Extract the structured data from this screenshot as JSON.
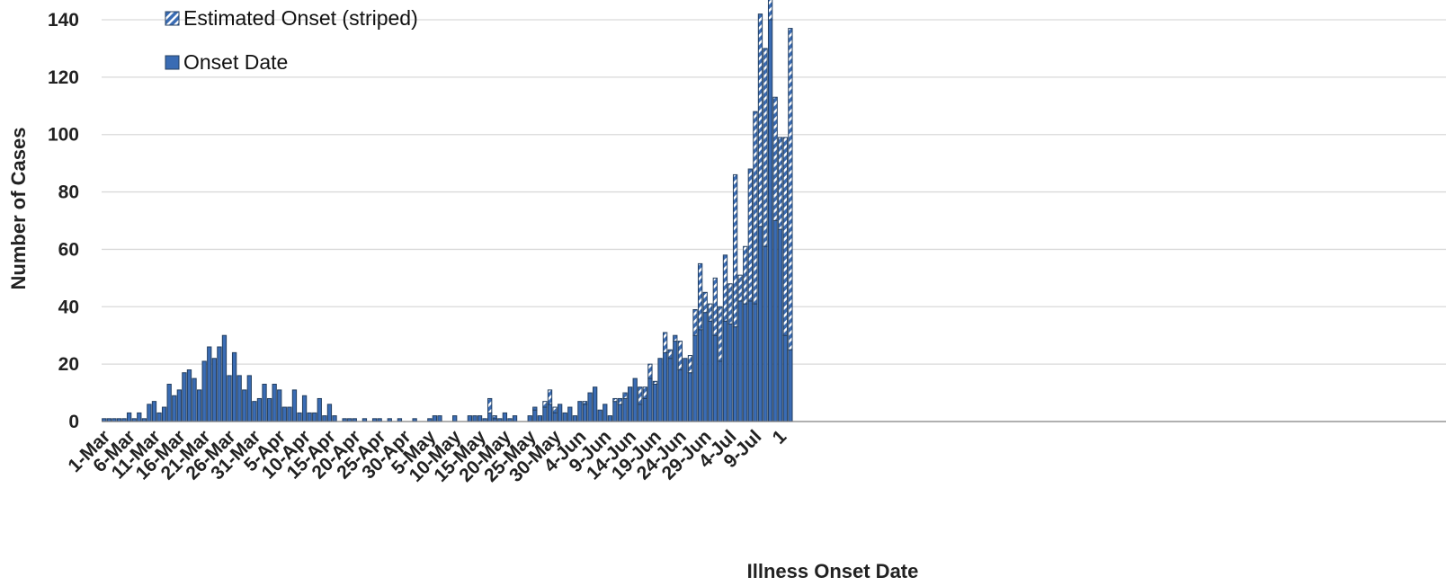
{
  "chart_data": {
    "type": "bar",
    "stacked": true,
    "title": "",
    "xlabel": "Illness Onset Date",
    "ylabel": "Number of Cases",
    "ylim": [
      0,
      148
    ],
    "y_ticks": [
      0,
      20,
      40,
      60,
      80,
      100,
      120,
      140
    ],
    "grid": true,
    "legend_position": "top-left",
    "colors": {
      "bar_fill": "#3a6cb4",
      "bar_edge": "#243f60",
      "stripe": "#ffffff",
      "grid": "#d9d9d9"
    },
    "legend": [
      {
        "label": "Estimated Onset (striped)",
        "style": "striped"
      },
      {
        "label": "Onset Date",
        "style": "solid"
      }
    ],
    "x_tick_labels": [
      "1-Mar",
      "6-Mar",
      "11-Mar",
      "16-Mar",
      "21-Mar",
      "26-Mar",
      "31-Mar",
      "5-Apr",
      "10-Apr",
      "15-Apr",
      "20-Apr",
      "25-Apr",
      "30-Apr",
      "5-May",
      "10-May",
      "15-May",
      "20-May",
      "25-May",
      "30-May",
      "4-Jun",
      "9-Jun",
      "14-Jun",
      "19-Jun",
      "24-Jun",
      "29-Jun",
      "4-Jul",
      "9-Jul",
      "1"
    ],
    "x_tick_every_days": 5,
    "first_date": "1-Mar",
    "series": [
      {
        "name": "Onset Date",
        "values": [
          1,
          1,
          1,
          1,
          1,
          3,
          1,
          3,
          1,
          6,
          7,
          3,
          5,
          13,
          9,
          11,
          17,
          18,
          15,
          11,
          21,
          26,
          22,
          26,
          30,
          16,
          24,
          16,
          11,
          16,
          7,
          8,
          13,
          8,
          13,
          11,
          5,
          5,
          11,
          3,
          9,
          3,
          3,
          8,
          2,
          6,
          2,
          0,
          1,
          1,
          1,
          0,
          1,
          0,
          1,
          1,
          0,
          1,
          0,
          1,
          0,
          0,
          1,
          0,
          0,
          1,
          2,
          2,
          0,
          0,
          2,
          0,
          0,
          2,
          2,
          2,
          1,
          3,
          1,
          1,
          3,
          1,
          2,
          0,
          0,
          2,
          4,
          2,
          5,
          6,
          3,
          6,
          3,
          5,
          2,
          7,
          6,
          10,
          12,
          4,
          6,
          2,
          7,
          6,
          8,
          12,
          15,
          6,
          8,
          15,
          13,
          22,
          24,
          22,
          28,
          18,
          22,
          17,
          30,
          32,
          38,
          35,
          30,
          21,
          35,
          34,
          33,
          42,
          41,
          42,
          41,
          68,
          61,
          140,
          70,
          67,
          30,
          25
        ]
      },
      {
        "name": "Estimated Onset (striped)",
        "values": [
          0,
          0,
          0,
          0,
          0,
          0,
          0,
          0,
          0,
          0,
          0,
          0,
          0,
          0,
          0,
          0,
          0,
          0,
          0,
          0,
          0,
          0,
          0,
          0,
          0,
          0,
          0,
          0,
          0,
          0,
          0,
          0,
          0,
          0,
          0,
          0,
          0,
          0,
          0,
          0,
          0,
          0,
          0,
          0,
          0,
          0,
          0,
          0,
          0,
          0,
          0,
          0,
          0,
          0,
          0,
          0,
          0,
          0,
          0,
          0,
          0,
          0,
          0,
          0,
          0,
          0,
          0,
          0,
          0,
          0,
          0,
          0,
          0,
          0,
          0,
          0,
          0,
          5,
          1,
          0,
          0,
          0,
          0,
          0,
          0,
          0,
          1,
          0,
          2,
          5,
          2,
          0,
          0,
          0,
          0,
          0,
          1,
          0,
          0,
          0,
          0,
          0,
          1,
          2,
          2,
          0,
          0,
          6,
          4,
          5,
          1,
          0,
          7,
          3,
          2,
          10,
          0,
          6,
          9,
          23,
          7,
          6,
          20,
          19,
          23,
          14,
          53,
          9,
          20,
          46,
          67,
          74,
          69,
          8,
          43,
          32,
          69,
          112
        ]
      }
    ]
  }
}
